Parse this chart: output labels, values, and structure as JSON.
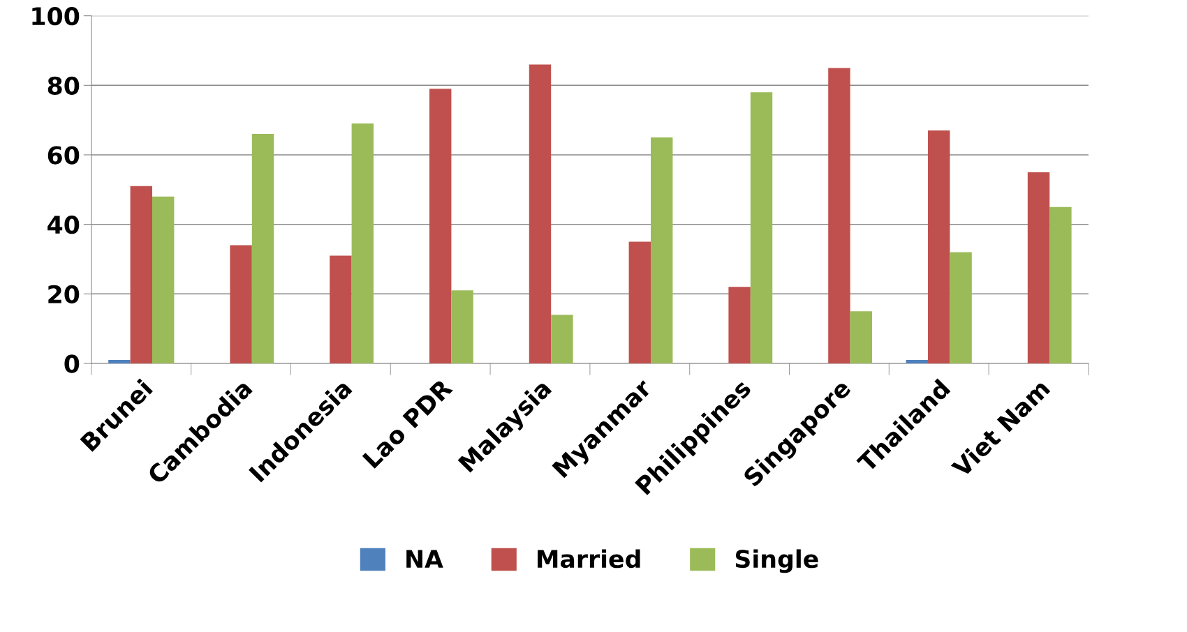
{
  "chart_data": {
    "type": "bar",
    "categories": [
      "Brunei",
      "Cambodia",
      "Indonesia",
      "Lao PDR",
      "Malaysia",
      "Myanmar",
      "Philippines",
      "Singapore",
      "Thailand",
      "Viet Nam"
    ],
    "series": [
      {
        "name": "NA",
        "color": "#4f81bd",
        "values": [
          1,
          0,
          0,
          0,
          0,
          0,
          0,
          0,
          1,
          0
        ]
      },
      {
        "name": "Married",
        "color": "#c0504d",
        "values": [
          51,
          34,
          31,
          79,
          86,
          35,
          22,
          85,
          67,
          55
        ]
      },
      {
        "name": "Single",
        "color": "#9bbb59",
        "values": [
          48,
          66,
          69,
          21,
          14,
          65,
          78,
          15,
          32,
          45
        ]
      }
    ],
    "ylim": [
      0,
      100
    ],
    "yticks": [
      0,
      20,
      40,
      60,
      80,
      100
    ],
    "grid": "y",
    "legend": "bottom"
  }
}
